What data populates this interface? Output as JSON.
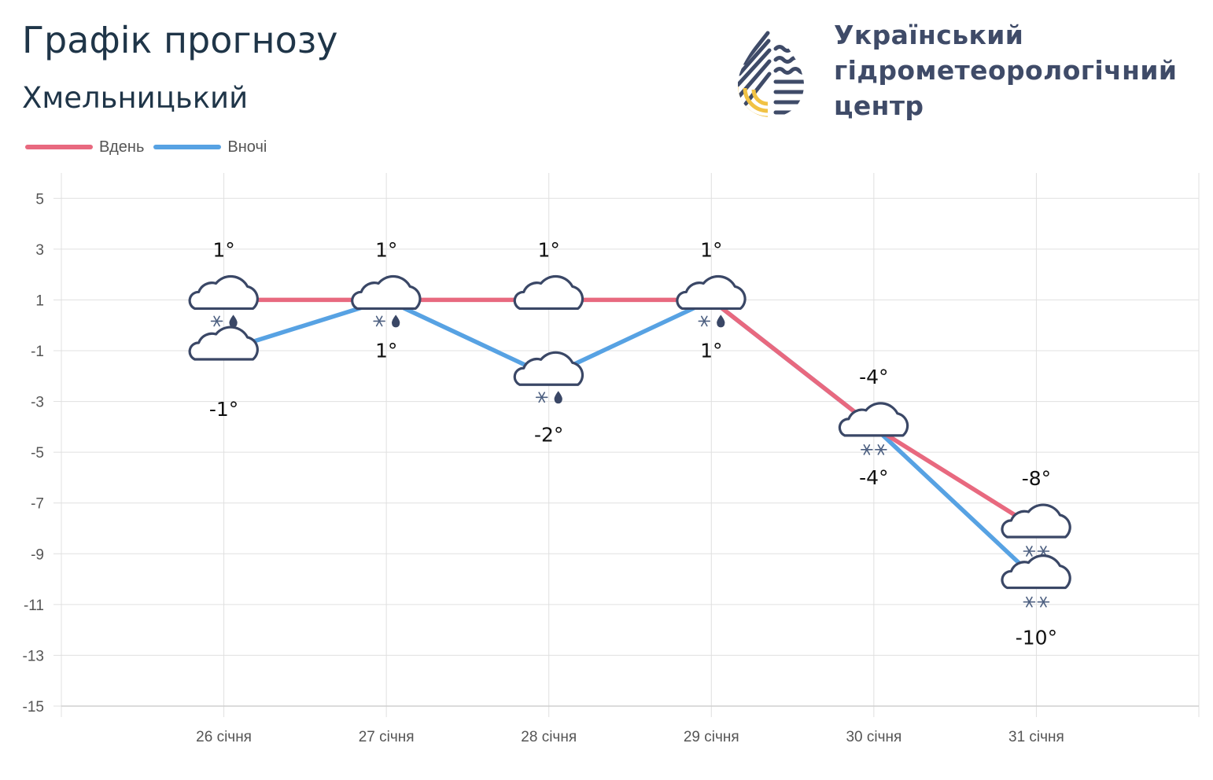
{
  "header": {
    "title": "Графік прогнозу",
    "city": "Хмельницький"
  },
  "organization": {
    "line1": "Український",
    "line2": "гідрометеорологічний",
    "line3": "центр"
  },
  "legend": {
    "day": "Вдень",
    "night": "Вночі"
  },
  "colors": {
    "day": "#e8697f",
    "night": "#57a2e3",
    "grid": "#e0e0e0",
    "cloud_stroke": "#3a4766",
    "logo_blue": "#3f4b68",
    "logo_yellow": "#f1c244"
  },
  "chart_data": {
    "type": "line",
    "categories": [
      "26 січня",
      "27 січня",
      "28 січня",
      "29 січня",
      "30 січня",
      "31 січня"
    ],
    "ylim": [
      -15,
      6
    ],
    "yticks": [
      5,
      3,
      1,
      -1,
      -3,
      -5,
      -7,
      -9,
      -11,
      -13,
      -15
    ],
    "series": [
      {
        "name": "Вдень",
        "key": "day",
        "values": [
          1,
          1,
          1,
          1,
          -4,
          -8
        ],
        "labels": [
          "1°",
          "1°",
          "1°",
          "1°",
          "-4°",
          "-8°"
        ],
        "label_position": "above",
        "icons": [
          "cloud-snow-rain",
          "cloud-snow-rain",
          "cloud",
          "cloud-snow-rain",
          "cloud-snow",
          "cloud-snow"
        ]
      },
      {
        "name": "Вночі",
        "key": "night",
        "values": [
          -1,
          1,
          -2,
          1,
          -4,
          -10
        ],
        "labels": [
          "-1°",
          "1°",
          "-2°",
          "1°",
          "-4°",
          "-10°"
        ],
        "label_position": "below",
        "icons": [
          "cloud",
          "",
          "cloud-snow-rain",
          "",
          "",
          "cloud-snow"
        ]
      }
    ]
  }
}
